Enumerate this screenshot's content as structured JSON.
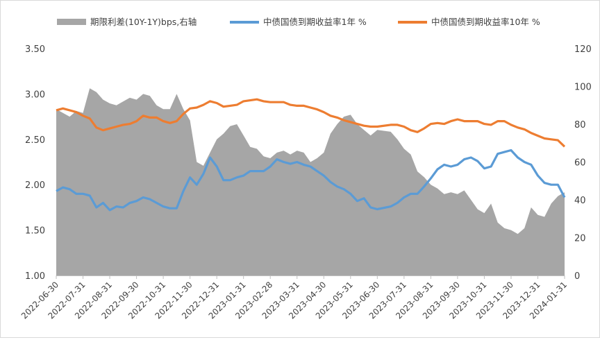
{
  "chart_data": {
    "type": "area+line",
    "title": "",
    "legend_position": "top",
    "grid": false,
    "colors": {
      "spread": "#a6a6a6",
      "y1": "#5b9bd5",
      "y10": "#ed7d31",
      "axis": "#404040"
    },
    "legend": [
      {
        "key": "spread",
        "label": "期限利差(10Y-1Y)bps,右轴"
      },
      {
        "key": "y1",
        "label": "中债国债到期收益率1年 %"
      },
      {
        "key": "y10",
        "label": "中债国债到期收益率10年 %"
      }
    ],
    "x_axis": {
      "ticks": [
        "2022-06-30",
        "2022-07-31",
        "2022-08-31",
        "2022-09-30",
        "2022-10-31",
        "2022-11-30",
        "2022-12-31",
        "2023-01-31",
        "2023-02-28",
        "2023-03-31",
        "2023-04-30",
        "2023-05-31",
        "2023-06-30",
        "2023-07-31",
        "2023-08-31",
        "2023-09-30",
        "2023-10-31",
        "2023-11-30",
        "2023-12-31",
        "2024-01-31"
      ]
    },
    "y_left": {
      "ticks": [
        "1.00",
        "1.50",
        "2.00",
        "2.50",
        "3.00",
        "3.50"
      ],
      "range": [
        1.0,
        3.5
      ]
    },
    "y_right": {
      "ticks": [
        "0",
        "20",
        "40",
        "60",
        "80",
        "100",
        "120"
      ],
      "range": [
        0,
        120
      ]
    },
    "points": [
      [
        0,
        88,
        1.93,
        2.82
      ],
      [
        0.25,
        86,
        1.97,
        2.84
      ],
      [
        0.5,
        84,
        1.95,
        2.82
      ],
      [
        0.75,
        87,
        1.9,
        2.8
      ],
      [
        1,
        86,
        1.9,
        2.76
      ],
      [
        1.25,
        99,
        1.88,
        2.73
      ],
      [
        1.5,
        97,
        1.75,
        2.63
      ],
      [
        1.75,
        93,
        1.8,
        2.6
      ],
      [
        2,
        91,
        1.72,
        2.62
      ],
      [
        2.25,
        90,
        1.76,
        2.64
      ],
      [
        2.5,
        92,
        1.75,
        2.66
      ],
      [
        2.75,
        94,
        1.8,
        2.67
      ],
      [
        3,
        93,
        1.82,
        2.7
      ],
      [
        3.25,
        96,
        1.86,
        2.76
      ],
      [
        3.5,
        95,
        1.84,
        2.74
      ],
      [
        3.75,
        90,
        1.8,
        2.74
      ],
      [
        4,
        88,
        1.76,
        2.7
      ],
      [
        4.25,
        88,
        1.74,
        2.68
      ],
      [
        4.5,
        96,
        1.74,
        2.7
      ],
      [
        4.75,
        88,
        1.93,
        2.78
      ],
      [
        5,
        82,
        2.08,
        2.84
      ],
      [
        5.25,
        60,
        2.0,
        2.85
      ],
      [
        5.5,
        58,
        2.12,
        2.88
      ],
      [
        5.75,
        65,
        2.3,
        2.92
      ],
      [
        6,
        72,
        2.2,
        2.9
      ],
      [
        6.25,
        75,
        2.05,
        2.86
      ],
      [
        6.5,
        79,
        2.05,
        2.87
      ],
      [
        6.75,
        80,
        2.08,
        2.88
      ],
      [
        7,
        74,
        2.1,
        2.92
      ],
      [
        7.25,
        68,
        2.15,
        2.93
      ],
      [
        7.5,
        67,
        2.15,
        2.94
      ],
      [
        7.75,
        63,
        2.15,
        2.92
      ],
      [
        8,
        62,
        2.2,
        2.91
      ],
      [
        8.25,
        65,
        2.28,
        2.91
      ],
      [
        8.5,
        66,
        2.25,
        2.91
      ],
      [
        8.75,
        64,
        2.23,
        2.88
      ],
      [
        9,
        66,
        2.25,
        2.87
      ],
      [
        9.25,
        65,
        2.22,
        2.87
      ],
      [
        9.5,
        60,
        2.2,
        2.85
      ],
      [
        9.75,
        62,
        2.15,
        2.83
      ],
      [
        10,
        65,
        2.1,
        2.8
      ],
      [
        10.25,
        75,
        2.03,
        2.76
      ],
      [
        10.5,
        80,
        1.98,
        2.74
      ],
      [
        10.75,
        84,
        1.95,
        2.71
      ],
      [
        11,
        85,
        1.9,
        2.69
      ],
      [
        11.25,
        80,
        1.82,
        2.67
      ],
      [
        11.5,
        77,
        1.85,
        2.65
      ],
      [
        11.75,
        74,
        1.75,
        2.64
      ],
      [
        12,
        77,
        1.73,
        2.64
      ],
      [
        12.5,
        76,
        1.76,
        2.66
      ],
      [
        12.75,
        72,
        1.8,
        2.66
      ],
      [
        13,
        67,
        1.86,
        2.64
      ],
      [
        13.25,
        64,
        1.9,
        2.6
      ],
      [
        13.5,
        55,
        1.9,
        2.58
      ],
      [
        13.75,
        52,
        1.98,
        2.62
      ],
      [
        14,
        48,
        2.07,
        2.67
      ],
      [
        14.25,
        46,
        2.17,
        2.68
      ],
      [
        14.5,
        43,
        2.22,
        2.67
      ],
      [
        14.75,
        44,
        2.2,
        2.7
      ],
      [
        15,
        43,
        2.22,
        2.72
      ],
      [
        15.25,
        45,
        2.28,
        2.7
      ],
      [
        15.5,
        40,
        2.3,
        2.7
      ],
      [
        15.75,
        35,
        2.26,
        2.7
      ],
      [
        16,
        33,
        2.18,
        2.67
      ],
      [
        16.25,
        38,
        2.2,
        2.66
      ],
      [
        16.5,
        28,
        2.34,
        2.7
      ],
      [
        16.75,
        25,
        2.36,
        2.7
      ],
      [
        17,
        24,
        2.38,
        2.66
      ],
      [
        17.25,
        22,
        2.3,
        2.63
      ],
      [
        17.5,
        25,
        2.25,
        2.61
      ],
      [
        17.75,
        36,
        2.22,
        2.57
      ],
      [
        18,
        32,
        2.1,
        2.54
      ],
      [
        18.25,
        31,
        2.02,
        2.51
      ],
      [
        18.5,
        38,
        2.0,
        2.5
      ],
      [
        18.75,
        42,
        2.0,
        2.49
      ],
      [
        19,
        44,
        1.86,
        2.42
      ]
    ]
  }
}
